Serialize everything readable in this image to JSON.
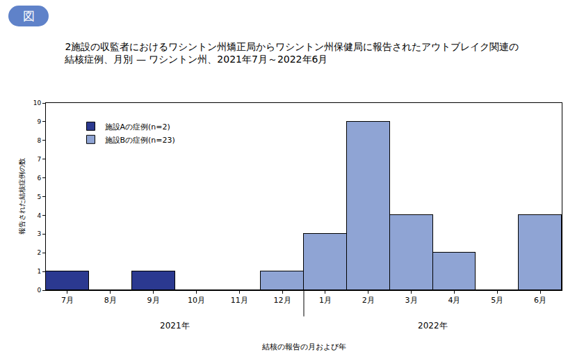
{
  "chart_data": {
    "type": "bar",
    "badge": "図",
    "title": [
      "2施設の収監者におけるワシントン州矯正局からワシントン州保健局に報告されたアウトブレイク関連の",
      "結核症例、月別 — ワシントン州、2021年7月～2022年6月"
    ],
    "x_label": "結核の報告の月および年",
    "y_label": "報告された結核症例の数",
    "categories": [
      "7月",
      "8月",
      "9月",
      "10月",
      "11月",
      "12月",
      "1月",
      "2月",
      "3月",
      "4月",
      "5月",
      "6月"
    ],
    "year_groups": [
      {
        "label": "2021年",
        "from": "7月",
        "to": "12月"
      },
      {
        "label": "2022年",
        "from": "1月",
        "to": "6月"
      }
    ],
    "series": [
      {
        "name": "施設Aの症例(n=2)",
        "color": "#2b3990",
        "values": [
          1,
          0,
          1,
          0,
          0,
          0,
          0,
          0,
          0,
          0,
          0,
          0
        ]
      },
      {
        "name": "施設Bの症例(n=23)",
        "color": "#8fa4d4",
        "values": [
          0,
          0,
          0,
          0,
          0,
          1,
          3,
          9,
          4,
          2,
          0,
          4
        ]
      }
    ],
    "stacked": true,
    "ylim": [
      0,
      10
    ],
    "yticks": [
      0,
      1,
      2,
      3,
      4,
      5,
      6,
      7,
      8,
      9,
      10
    ],
    "grid": false,
    "legend": "top left"
  }
}
